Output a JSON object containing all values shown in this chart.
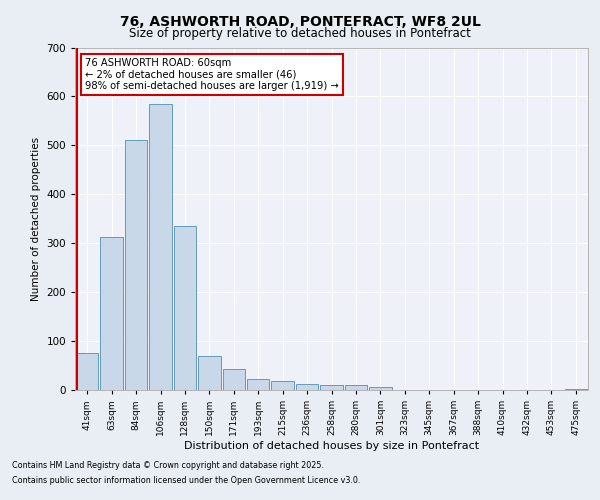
{
  "title_line1": "76, ASHWORTH ROAD, PONTEFRACT, WF8 2UL",
  "title_line2": "Size of property relative to detached houses in Pontefract",
  "xlabel": "Distribution of detached houses by size in Pontefract",
  "ylabel": "Number of detached properties",
  "bar_labels": [
    "41sqm",
    "63sqm",
    "84sqm",
    "106sqm",
    "128sqm",
    "150sqm",
    "171sqm",
    "193sqm",
    "215sqm",
    "236sqm",
    "258sqm",
    "280sqm",
    "301sqm",
    "323sqm",
    "345sqm",
    "367sqm",
    "388sqm",
    "410sqm",
    "432sqm",
    "453sqm",
    "475sqm"
  ],
  "bar_values": [
    75,
    312,
    510,
    585,
    335,
    70,
    42,
    22,
    18,
    12,
    10,
    10,
    7,
    0,
    0,
    0,
    0,
    0,
    0,
    0,
    3
  ],
  "bar_color": "#c8d8e8",
  "bar_edge_color": "#6699bb",
  "vline_color": "#cc0000",
  "annotation_text": "76 ASHWORTH ROAD: 60sqm\n← 2% of detached houses are smaller (46)\n98% of semi-detached houses are larger (1,919) →",
  "annotation_box_color": "#ffffff",
  "annotation_box_edge": "#cc0000",
  "ylim": [
    0,
    700
  ],
  "yticks": [
    0,
    100,
    200,
    300,
    400,
    500,
    600,
    700
  ],
  "footer_line1": "Contains HM Land Registry data © Crown copyright and database right 2025.",
  "footer_line2": "Contains public sector information licensed under the Open Government Licence v3.0.",
  "bg_color": "#e8eef4",
  "plot_bg_color": "#eef2f8"
}
